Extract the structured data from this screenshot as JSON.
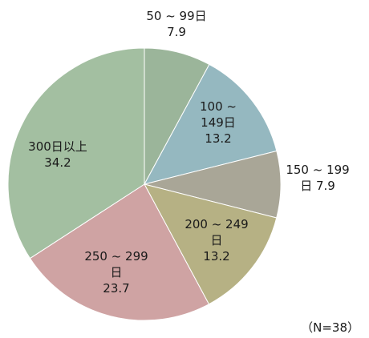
{
  "chart_data": {
    "type": "pie",
    "slices": [
      {
        "label": [
          "50 ~ 99日"
        ],
        "value_text": "7.9",
        "value": 7.9,
        "color": "#9bb59a"
      },
      {
        "label": [
          "100 ~",
          "149日"
        ],
        "value_text": "13.2",
        "value": 13.2,
        "color": "#95b8c0"
      },
      {
        "label": [
          "150 ~ 199",
          "日"
        ],
        "value_text": "7.9",
        "value": 7.9,
        "color": "#a9a697"
      },
      {
        "label": [
          "200 ~ 249",
          "日"
        ],
        "value_text": "13.2",
        "value": 13.2,
        "color": "#b6b184"
      },
      {
        "label": [
          "250 ~ 299",
          "日"
        ],
        "value_text": "23.7",
        "value": 23.7,
        "color": "#cfa3a3"
      },
      {
        "label": [
          "300日以上"
        ],
        "value_text": "34.2",
        "value": 34.2,
        "color": "#a3bfa1"
      }
    ],
    "note": "（N=38）"
  }
}
